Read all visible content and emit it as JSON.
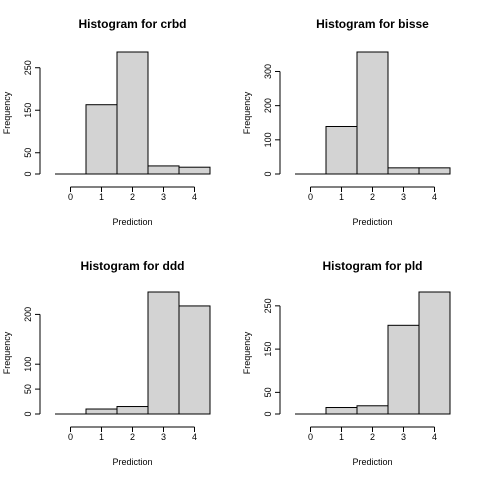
{
  "chart_data": [
    {
      "type": "bar",
      "title": "Histogram for crbd",
      "xlabel": "Prediction",
      "ylabel": "Frequency",
      "categories": [
        "0",
        "1",
        "2",
        "3",
        "4"
      ],
      "bins": [
        [
          -0.5,
          0.5
        ],
        [
          0.5,
          1.5
        ],
        [
          1.5,
          2.5
        ],
        [
          2.5,
          3.5
        ],
        [
          3.5,
          4.5
        ]
      ],
      "values": [
        0,
        163,
        287,
        19,
        16
      ],
      "xticks": [
        0,
        1,
        2,
        3,
        4
      ],
      "yticks": [
        0,
        50,
        150,
        250
      ],
      "ylim": [
        0,
        287
      ]
    },
    {
      "type": "bar",
      "title": "Histogram for bisse",
      "xlabel": "Prediction",
      "ylabel": "Frequency",
      "categories": [
        "0",
        "1",
        "2",
        "3",
        "4"
      ],
      "bins": [
        [
          -0.5,
          0.5
        ],
        [
          0.5,
          1.5
        ],
        [
          1.5,
          2.5
        ],
        [
          2.5,
          3.5
        ],
        [
          3.5,
          4.5
        ]
      ],
      "values": [
        0,
        139,
        357,
        18,
        18
      ],
      "xticks": [
        0,
        1,
        2,
        3,
        4
      ],
      "yticks": [
        0,
        100,
        200,
        300
      ],
      "ylim": [
        0,
        357
      ]
    },
    {
      "type": "bar",
      "title": "Histogram for ddd",
      "xlabel": "Prediction",
      "ylabel": "Frequency",
      "categories": [
        "0",
        "1",
        "2",
        "3",
        "4"
      ],
      "bins": [
        [
          -0.5,
          0.5
        ],
        [
          0.5,
          1.5
        ],
        [
          1.5,
          2.5
        ],
        [
          2.5,
          3.5
        ],
        [
          3.5,
          4.5
        ]
      ],
      "values": [
        0,
        10,
        15,
        245,
        217
      ],
      "xticks": [
        0,
        1,
        2,
        3,
        4
      ],
      "yticks": [
        0,
        50,
        100,
        200
      ],
      "ylim": [
        0,
        245
      ]
    },
    {
      "type": "bar",
      "title": "Histogram for pld",
      "xlabel": "Prediction",
      "ylabel": "Frequency",
      "categories": [
        "0",
        "1",
        "2",
        "3",
        "4"
      ],
      "bins": [
        [
          -0.5,
          0.5
        ],
        [
          0.5,
          1.5
        ],
        [
          1.5,
          2.5
        ],
        [
          2.5,
          3.5
        ],
        [
          3.5,
          4.5
        ]
      ],
      "values": [
        0,
        15,
        19,
        205,
        282
      ],
      "xticks": [
        0,
        1,
        2,
        3,
        4
      ],
      "yticks": [
        0,
        50,
        150,
        250
      ],
      "ylim": [
        0,
        282
      ]
    }
  ],
  "colors": {
    "bar_fill": "#d3d3d3",
    "bar_stroke": "#000000"
  }
}
